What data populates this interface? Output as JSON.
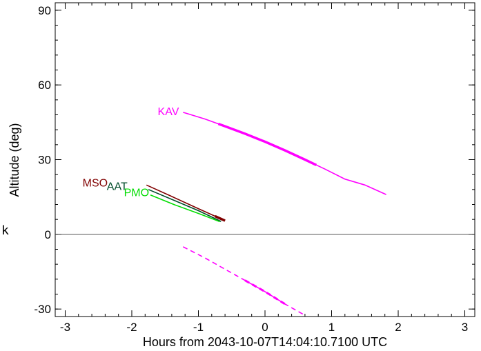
{
  "chart_data": {
    "type": "line",
    "xlabel": "Hours from 2043-10-07T14:04:10.7100 UTC",
    "ylabel": "Altitude (deg)",
    "xlim": [
      -3.15,
      3.15
    ],
    "ylim": [
      -33,
      93
    ],
    "xticks": [
      -3,
      -2,
      -1,
      0,
      1,
      2,
      3
    ],
    "xtick_labels": [
      "-3",
      "-2",
      "-1",
      "0",
      "1",
      "2",
      "3"
    ],
    "yticks": [
      -30,
      0,
      30,
      60,
      90
    ],
    "ytick_labels": [
      "-30",
      "0",
      "30",
      "60",
      "90"
    ],
    "grid": false,
    "reference_line_y": 0,
    "series": [
      {
        "name": "KAV",
        "color": "#ff00ff",
        "x": [
          -1.23,
          -0.9,
          -0.6,
          -0.3,
          0.0,
          0.3,
          0.6,
          0.9,
          1.2,
          1.5,
          1.82
        ],
        "y": [
          49.0,
          46.3,
          43.4,
          40.4,
          37.2,
          33.7,
          30.0,
          26.2,
          22.2,
          19.8,
          16.0
        ],
        "thick_segments": [
          [
            -0.7,
            0.77
          ]
        ]
      },
      {
        "name": "KAV",
        "color": "#ff00ff",
        "style": "dashed",
        "x": [
          -1.23,
          -0.9,
          -0.6,
          -0.3,
          0.0,
          0.3,
          0.6
        ],
        "y": [
          -5.0,
          -9.5,
          -14.0,
          -18.5,
          -23.0,
          -28.0,
          -32.5
        ]
      },
      {
        "name": "MSO",
        "color": "#800000",
        "x": [
          -1.78,
          -1.4,
          -1.0,
          -0.6
        ],
        "y": [
          19.8,
          15.2,
          10.3,
          5.5
        ]
      },
      {
        "name": "AAT",
        "color": "#004c2a",
        "x": [
          -1.75,
          -1.35,
          -1.0,
          -0.66
        ],
        "y": [
          18.0,
          13.5,
          9.5,
          5.2
        ]
      },
      {
        "name": "PMO",
        "color": "#00dd00",
        "x": [
          -1.72,
          -1.35,
          -1.0,
          -0.68
        ],
        "y": [
          15.8,
          11.8,
          8.4,
          5.1
        ]
      }
    ],
    "labels": {
      "KAV": "KAV",
      "MSO": "MSO",
      "AAT": "AAT",
      "PMO": "PMO"
    }
  },
  "stray_text": "k"
}
